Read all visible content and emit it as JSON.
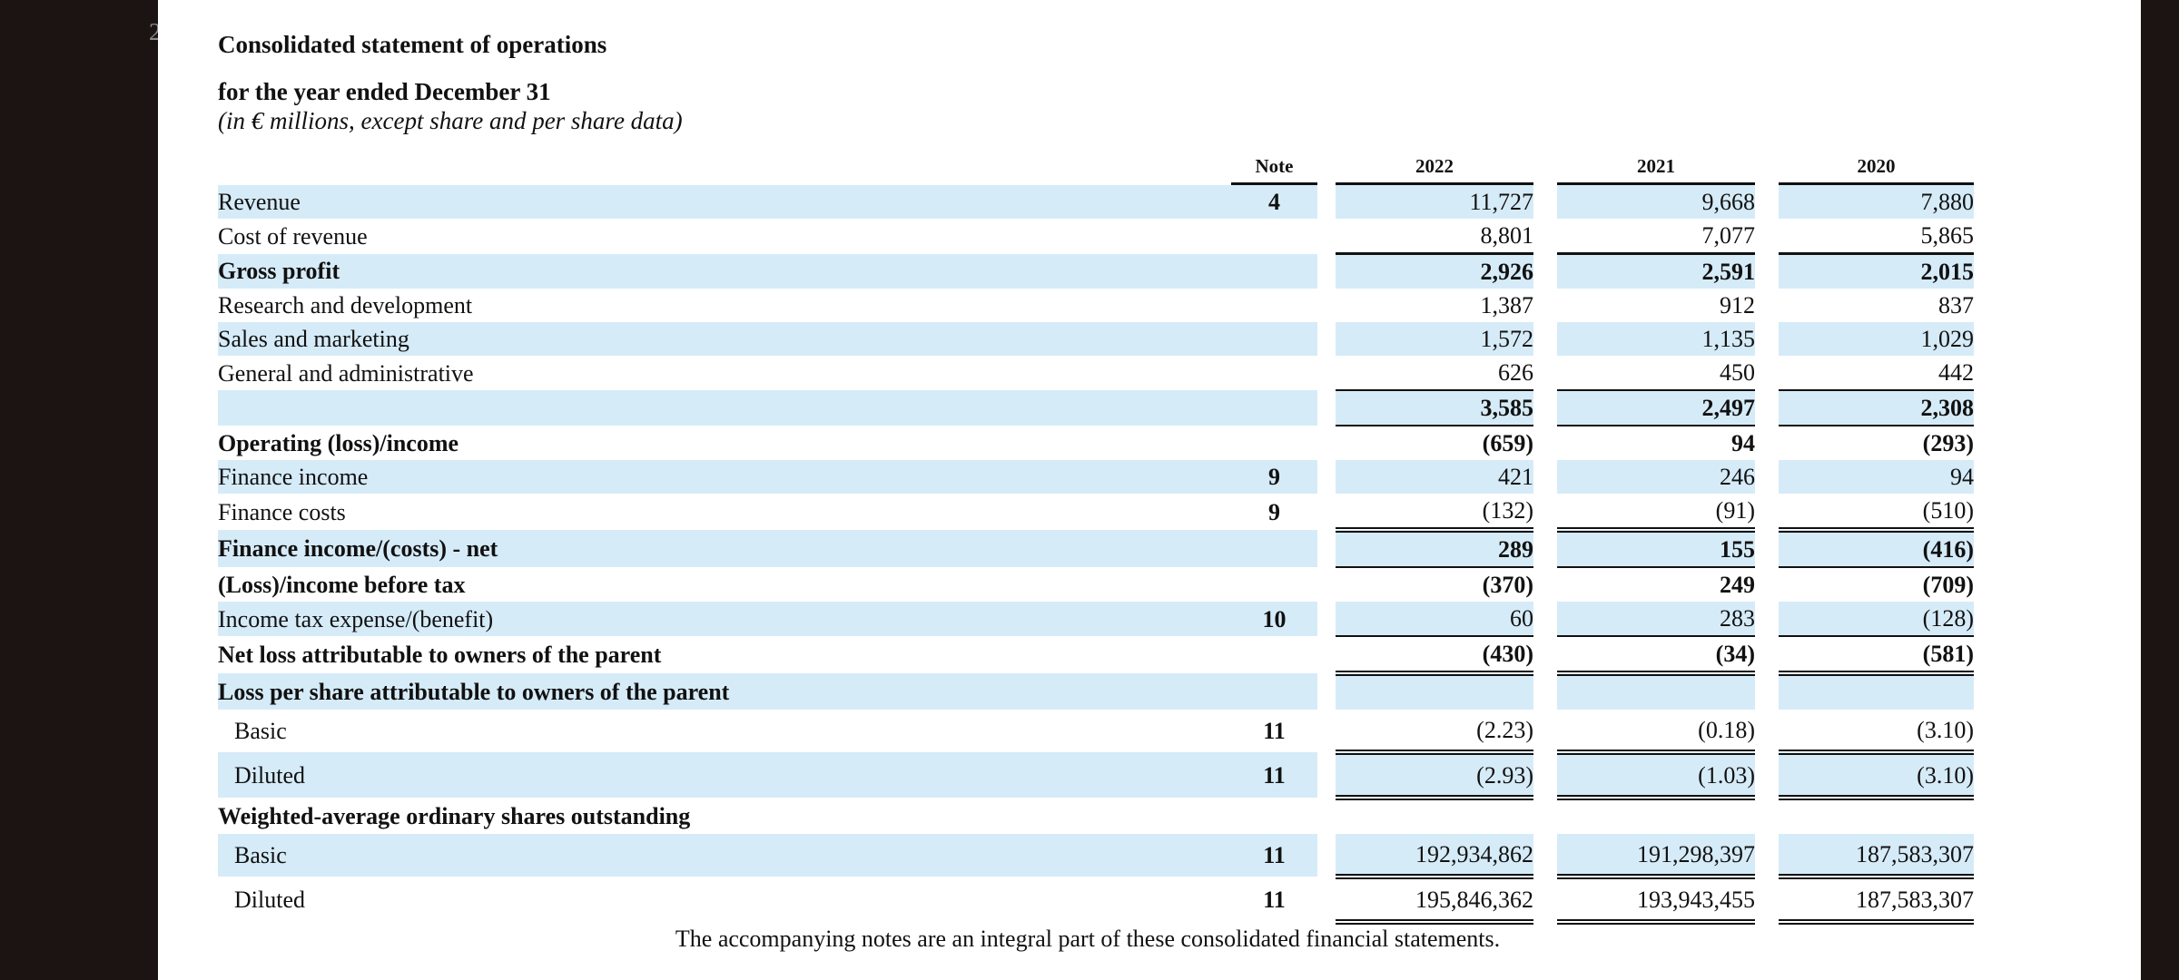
{
  "page_number": "2",
  "header": {
    "title": "Consolidated statement of operations",
    "subtitle": "for the year ended December 31",
    "units": "(in € millions, except share and per share data)"
  },
  "columns": {
    "note": "Note",
    "y2022": "2022",
    "y2021": "2021",
    "y2020": "2020"
  },
  "rows": [
    {
      "label": "Revenue",
      "note": "4",
      "v2022": "11,727",
      "v2021": "9,668",
      "v2020": "7,880"
    },
    {
      "label": "Cost of revenue",
      "note": "",
      "v2022": "8,801",
      "v2021": "7,077",
      "v2020": "5,865"
    },
    {
      "label": "Gross profit",
      "note": "",
      "v2022": "2,926",
      "v2021": "2,591",
      "v2020": "2,015"
    },
    {
      "label": "Research and development",
      "note": "",
      "v2022": "1,387",
      "v2021": "912",
      "v2020": "837"
    },
    {
      "label": "Sales and marketing",
      "note": "",
      "v2022": "1,572",
      "v2021": "1,135",
      "v2020": "1,029"
    },
    {
      "label": "General and administrative",
      "note": "",
      "v2022": "626",
      "v2021": "450",
      "v2020": "442"
    },
    {
      "label": "",
      "note": "",
      "v2022": "3,585",
      "v2021": "2,497",
      "v2020": "2,308"
    },
    {
      "label": "Operating (loss)/income",
      "note": "",
      "v2022": "(659)",
      "v2021": "94",
      "v2020": "(293)"
    },
    {
      "label": "Finance income",
      "note": "9",
      "v2022": "421",
      "v2021": "246",
      "v2020": "94"
    },
    {
      "label": "Finance costs",
      "note": "9",
      "v2022": "(132)",
      "v2021": "(91)",
      "v2020": "(510)"
    },
    {
      "label": "Finance income/(costs) - net",
      "note": "",
      "v2022": "289",
      "v2021": "155",
      "v2020": "(416)"
    },
    {
      "label": "(Loss)/income before tax",
      "note": "",
      "v2022": "(370)",
      "v2021": "249",
      "v2020": "(709)"
    },
    {
      "label": "Income tax expense/(benefit)",
      "note": "10",
      "v2022": "60",
      "v2021": "283",
      "v2020": "(128)"
    },
    {
      "label": "Net loss attributable to owners of the parent",
      "note": "",
      "v2022": "(430)",
      "v2021": "(34)",
      "v2020": "(581)"
    },
    {
      "label": "Loss per share attributable to owners of the parent",
      "note": "",
      "v2022": "",
      "v2021": "",
      "v2020": ""
    },
    {
      "label": "Basic",
      "note": "11",
      "v2022": "(2.23)",
      "v2021": "(0.18)",
      "v2020": "(3.10)"
    },
    {
      "label": "Diluted",
      "note": "11",
      "v2022": "(2.93)",
      "v2021": "(1.03)",
      "v2020": "(3.10)"
    },
    {
      "label": "Weighted-average ordinary shares outstanding",
      "note": "",
      "v2022": "",
      "v2021": "",
      "v2020": ""
    },
    {
      "label": "Basic",
      "note": "11",
      "v2022": "192,934,862",
      "v2021": "191,298,397",
      "v2020": "187,583,307"
    },
    {
      "label": "Diluted",
      "note": "11",
      "v2022": "195,846,362",
      "v2021": "193,943,455",
      "v2020": "187,583,307"
    }
  ],
  "footer": "The accompanying notes are an integral part of these consolidated financial statements."
}
